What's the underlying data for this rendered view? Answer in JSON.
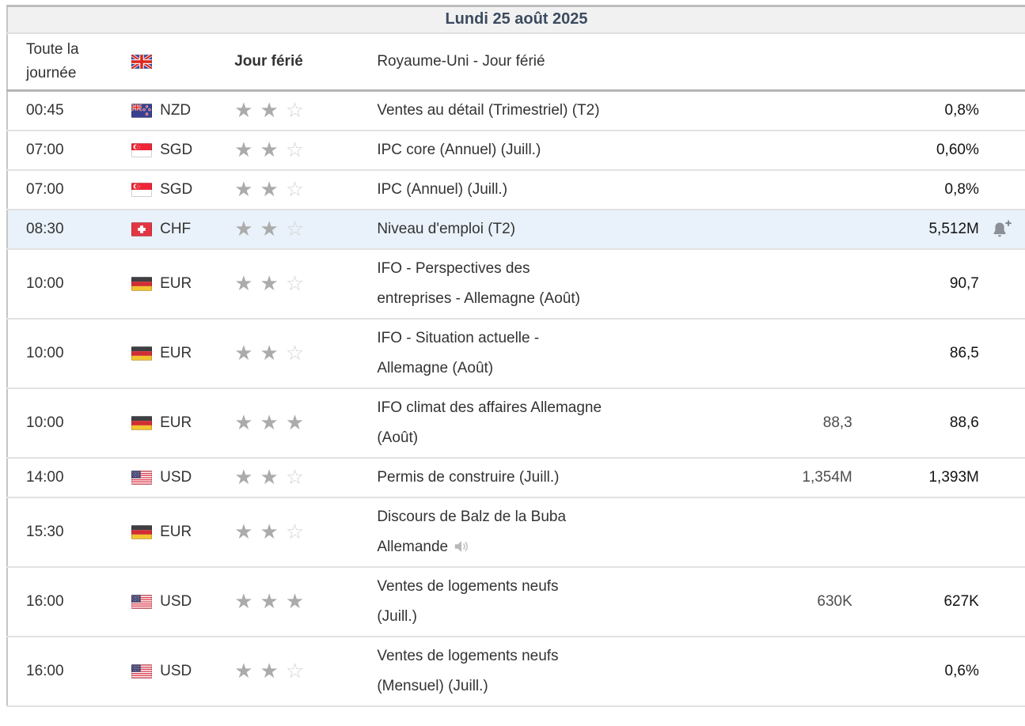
{
  "day_header": {
    "label": "Lundi 25 août 2025"
  },
  "holiday": {
    "time": "Toute la journée",
    "flag": "united-kingdom",
    "type_label": "Jour férié",
    "event": "Royaume-Uni - Jour férié"
  },
  "events": [
    {
      "time": "00:45",
      "currency": "NZD",
      "flag": "new-zealand",
      "importance": 2,
      "event": "Ventes au détail (Trimestriel) (T2)",
      "previous": "0,8%"
    },
    {
      "time": "07:00",
      "currency": "SGD",
      "flag": "singapore",
      "importance": 2,
      "event": "IPC core (Annuel) (Juill.)",
      "previous": "0,60%"
    },
    {
      "time": "07:00",
      "currency": "SGD",
      "flag": "singapore",
      "importance": 2,
      "event": "IPC (Annuel) (Juill.)",
      "previous": "0,8%"
    },
    {
      "time": "08:30",
      "currency": "CHF",
      "flag": "switzerland",
      "importance": 2,
      "event": "Niveau d'emploi (T2)",
      "previous": "5,512M",
      "highlighted": true,
      "alert": true
    },
    {
      "time": "10:00",
      "currency": "EUR",
      "flag": "germany",
      "importance": 2,
      "event": "IFO - Perspectives des entreprises - Allemagne (Août)",
      "previous": "90,7"
    },
    {
      "time": "10:00",
      "currency": "EUR",
      "flag": "germany",
      "importance": 2,
      "event": "IFO - Situation actuelle - Allemagne (Août)",
      "previous": "86,5"
    },
    {
      "time": "10:00",
      "currency": "EUR",
      "flag": "germany",
      "importance": 3,
      "event": "IFO climat des affaires Allemagne (Août)",
      "forecast": "88,3",
      "previous": "88,6"
    },
    {
      "time": "14:00",
      "currency": "USD",
      "flag": "united-states",
      "importance": 2,
      "event": "Permis de construire (Juill.)",
      "forecast": "1,354M",
      "previous": "1,393M"
    },
    {
      "time": "15:30",
      "currency": "EUR",
      "flag": "germany",
      "importance": 2,
      "event": "Discours de Balz de la Buba Allemande",
      "speech": true
    },
    {
      "time": "16:00",
      "currency": "USD",
      "flag": "united-states",
      "importance": 3,
      "event": "Ventes de logements neufs (Juill.)",
      "forecast": "630K",
      "previous": "627K"
    },
    {
      "time": "16:00",
      "currency": "USD",
      "flag": "united-states",
      "importance": 2,
      "event": "Ventes de logements neufs (Mensuel) (Juill.)",
      "previous": "0,6%"
    }
  ],
  "colors": {
    "header_bg": "#f1f1f1",
    "header_text": "#3c4b5f",
    "row_highlight_bg": "#e9f2fa",
    "star_filled": "#ababab",
    "star_empty": "#d2d2d2",
    "separator": "#e2e2e2",
    "day_separator": "#b5b5b5"
  }
}
